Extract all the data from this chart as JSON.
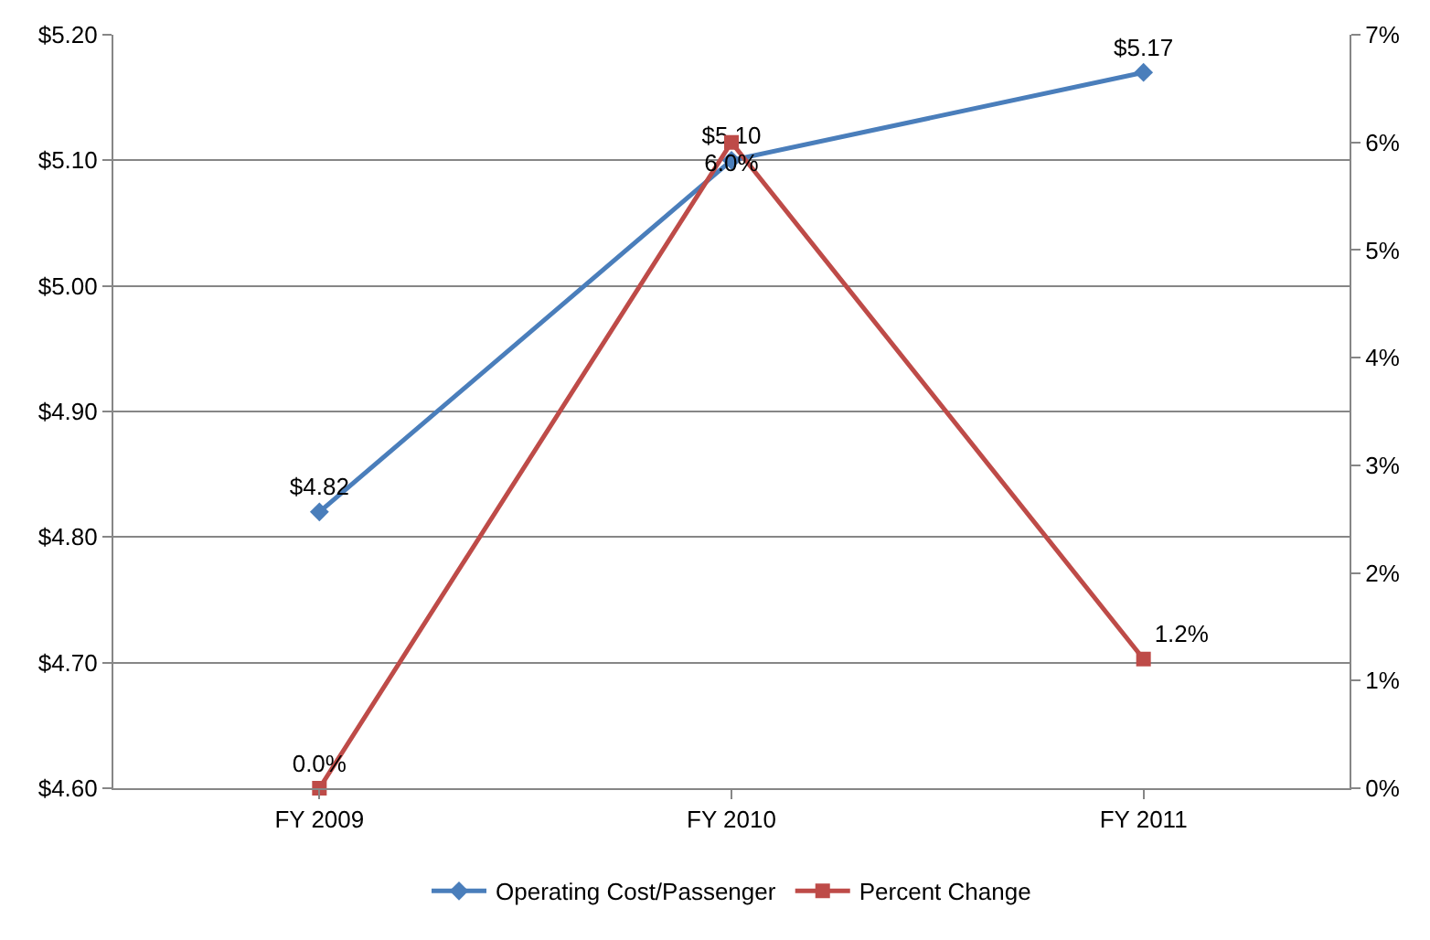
{
  "chart_data": {
    "type": "line",
    "categories": [
      "FY 2009",
      "FY 2010",
      "FY 2011"
    ],
    "series": [
      {
        "name": "Operating Cost/Passenger",
        "color": "#4a7ebb",
        "marker": "diamond",
        "values": [
          4.82,
          5.1,
          5.17
        ],
        "value_labels": [
          "$4.82",
          "$5.10",
          "$5.17"
        ]
      },
      {
        "name": "Percent Change",
        "color": "#be4b48",
        "marker": "square",
        "axis": "y2",
        "values": [
          0.0,
          6.0,
          1.2
        ],
        "value_labels": [
          "0.0%",
          "6.0%",
          "1.2%"
        ]
      }
    ],
    "ylim": [
      4.6,
      5.2
    ],
    "yticks": [
      {
        "value": 4.6,
        "label": "$4.60"
      },
      {
        "value": 4.7,
        "label": "$4.70"
      },
      {
        "value": 4.8,
        "label": "$4.80"
      },
      {
        "value": 4.9,
        "label": "$4.90"
      },
      {
        "value": 5.0,
        "label": "$5.00"
      },
      {
        "value": 5.1,
        "label": "$5.10"
      },
      {
        "value": 5.2,
        "label": "$5.20"
      }
    ],
    "y2lim": [
      0,
      7
    ],
    "y2ticks": [
      {
        "value": 0,
        "label": "0%"
      },
      {
        "value": 1,
        "label": "1%"
      },
      {
        "value": 2,
        "label": "2%"
      },
      {
        "value": 3,
        "label": "3%"
      },
      {
        "value": 4,
        "label": "4%"
      },
      {
        "value": 5,
        "label": "5%"
      },
      {
        "value": 6,
        "label": "6%"
      },
      {
        "value": 7,
        "label": "7%"
      }
    ],
    "grid": "y",
    "legend": "bottom",
    "line_style": "solid"
  }
}
